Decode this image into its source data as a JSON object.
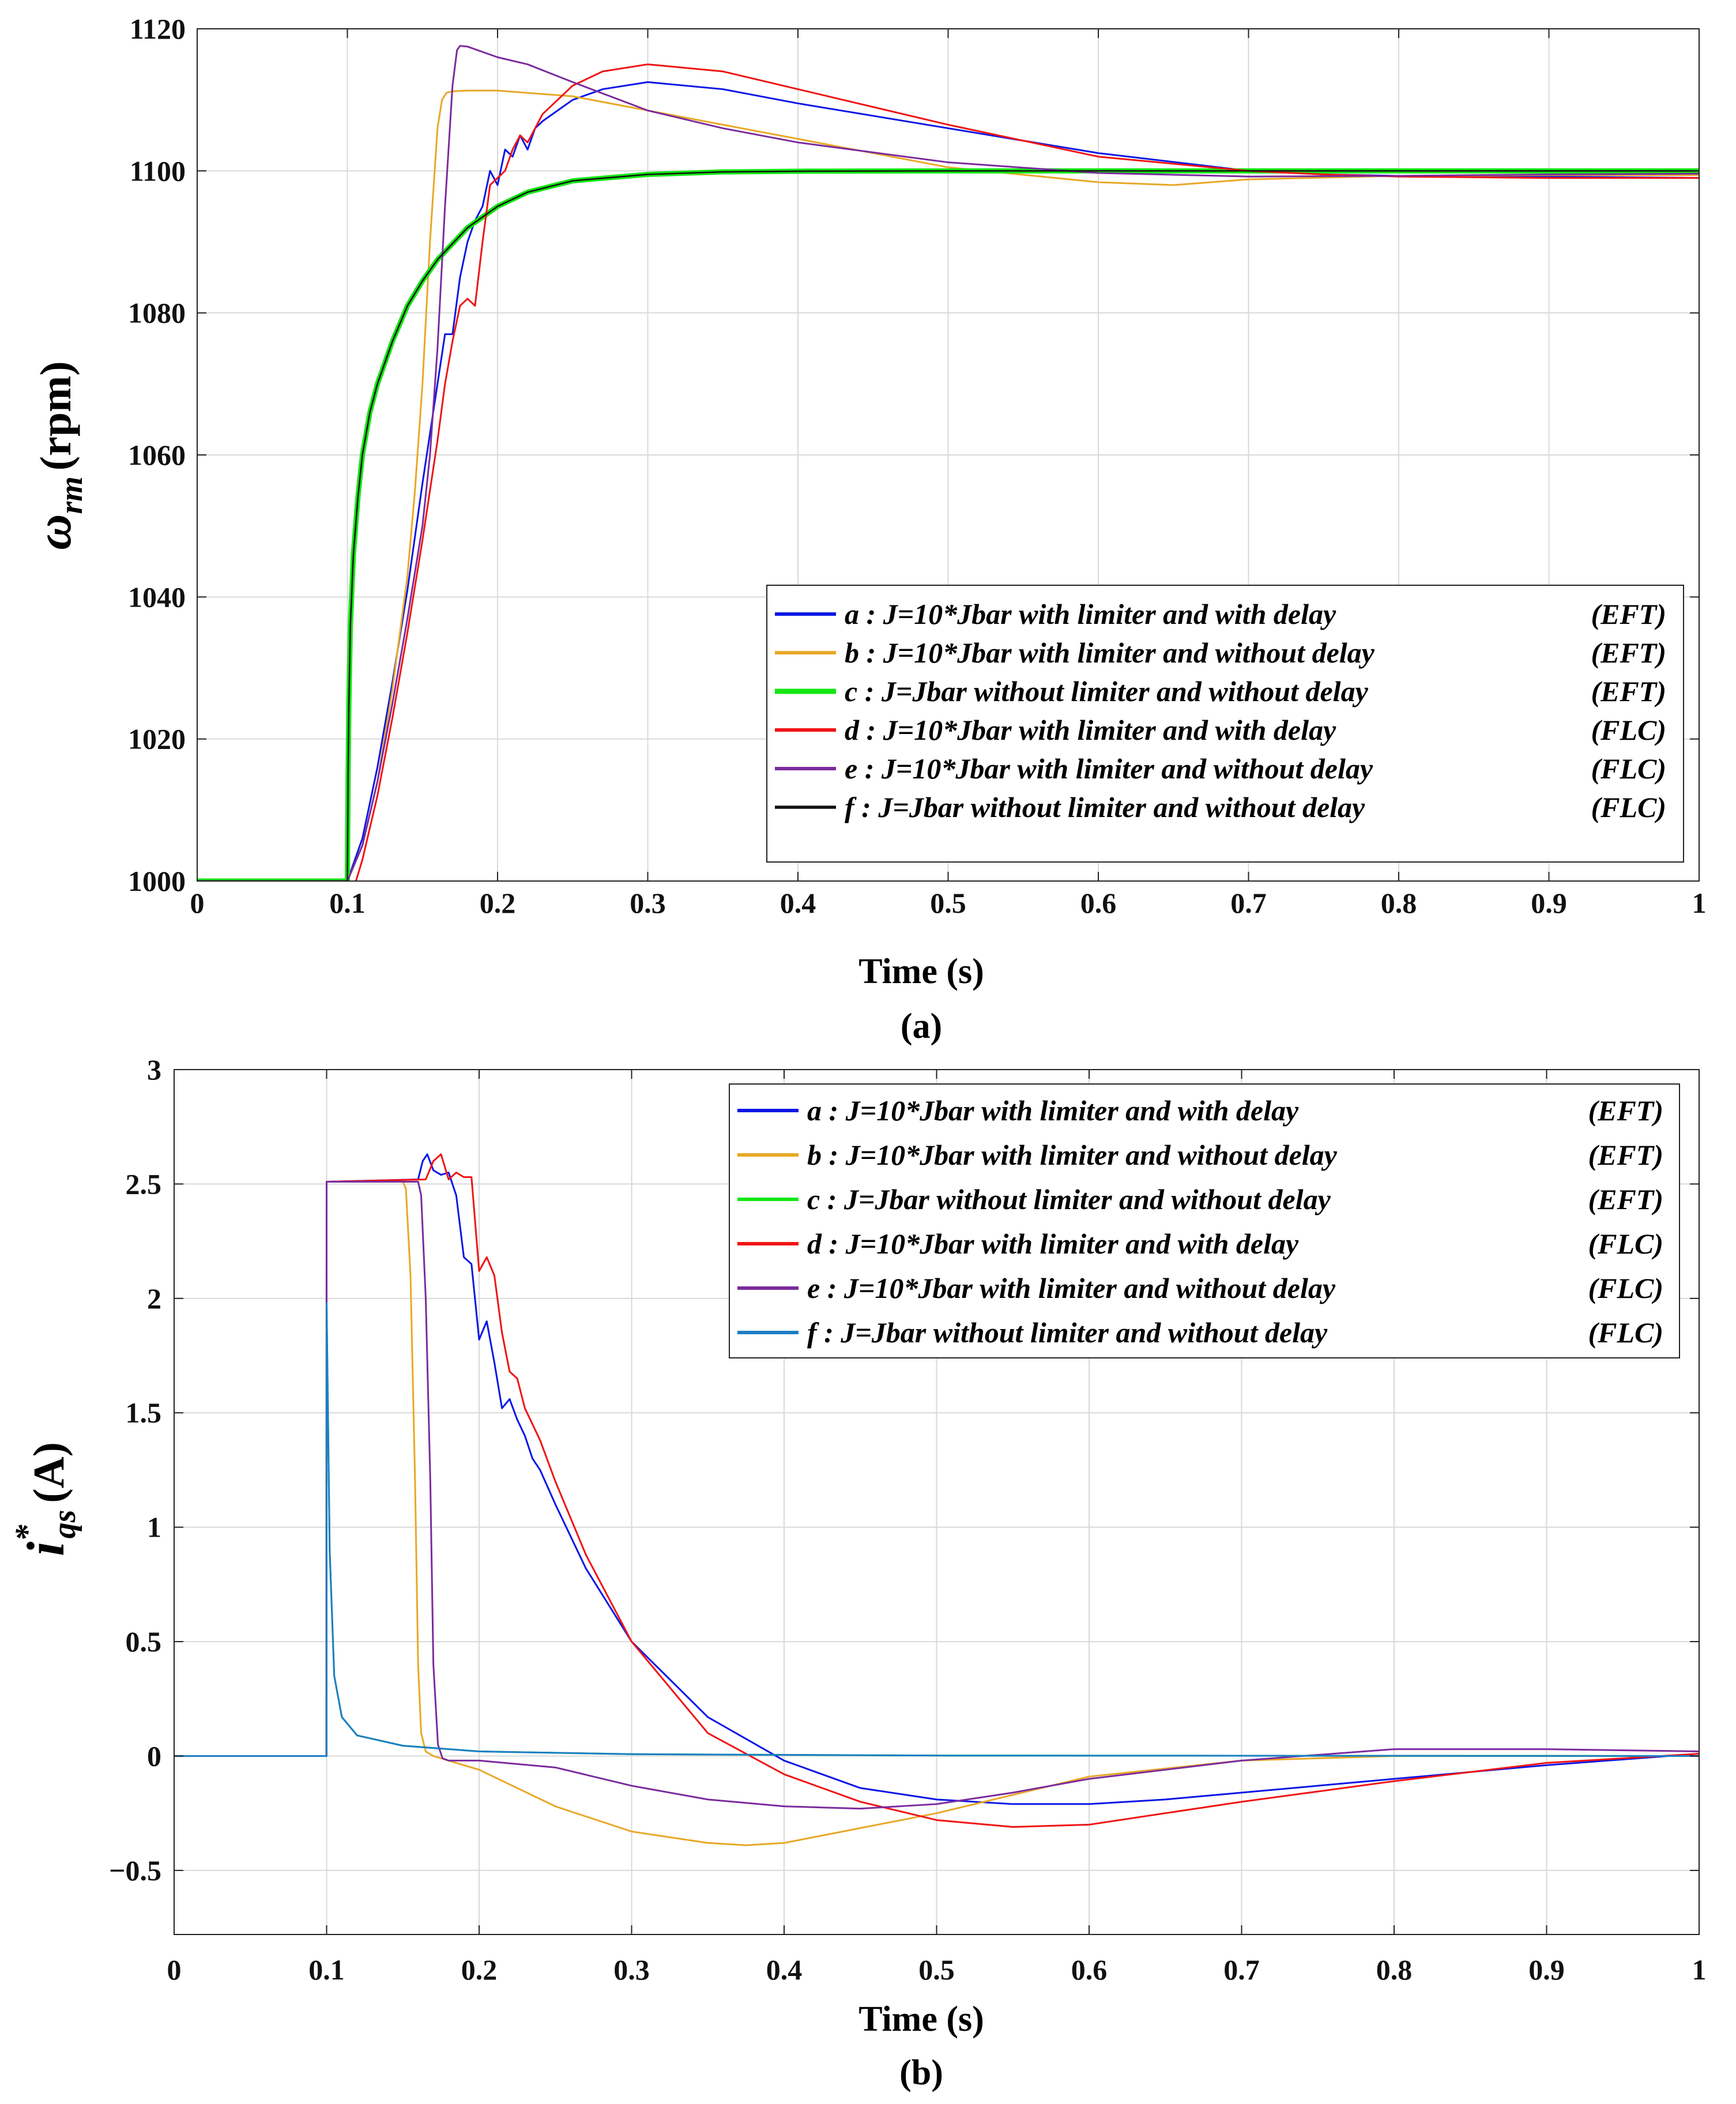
{
  "chart_data": [
    {
      "type": "line",
      "panel_label": "(a)",
      "ylabel": {
        "symbol": "ω",
        "subscript": "rm",
        "unit": "(rpm)"
      },
      "xlabel": "Time (s)",
      "xlim": [
        0,
        1
      ],
      "ylim": [
        1000,
        1120
      ],
      "xticks": [
        0,
        0.1,
        0.2,
        0.3,
        0.4,
        0.5,
        0.6,
        0.7,
        0.8,
        0.9,
        1
      ],
      "xtick_labels": [
        "0",
        "0.1",
        "0.2",
        "0.3",
        "0.4",
        "0.5",
        "0.6",
        "0.7",
        "0.8",
        "0.9",
        "1"
      ],
      "yticks": [
        1000,
        1020,
        1040,
        1060,
        1080,
        1100,
        1120
      ],
      "ytick_labels": [
        "1000",
        "1020",
        "1040",
        "1060",
        "1080",
        "1100",
        "1120"
      ],
      "grid": true,
      "legend_position": "bottom-right",
      "series": [
        {
          "key": "a",
          "name": "a : J=10*Jbar with limiter and with delay",
          "tag": "(EFT)",
          "color": "#0a16e6",
          "width": 3,
          "x": [
            0,
            0.1,
            0.11,
            0.12,
            0.13,
            0.14,
            0.15,
            0.16,
            0.165,
            0.17,
            0.175,
            0.18,
            0.185,
            0.19,
            0.195,
            0.2,
            0.205,
            0.21,
            0.215,
            0.22,
            0.225,
            0.23,
            0.24,
            0.25,
            0.27,
            0.3,
            0.35,
            0.4,
            0.5,
            0.6,
            0.7,
            0.75,
            0.8,
            0.9,
            1
          ],
          "y": [
            1000,
            1000,
            1006,
            1016,
            1028,
            1041,
            1056,
            1070,
            1077,
            1077,
            1085,
            1090,
            1093,
            1095,
            1100,
            1098,
            1103,
            1102,
            1105,
            1103,
            1106,
            1107,
            1108.5,
            1110,
            1111.5,
            1112.5,
            1111.5,
            1109.5,
            1106,
            1102.5,
            1100,
            1099.5,
            1099.3,
            1099.2,
            1099
          ]
        },
        {
          "key": "b",
          "name": "b : J=10*Jbar with limiter and without delay",
          "tag": "(EFT)",
          "color": "#e8a826",
          "width": 3,
          "x": [
            0,
            0.1,
            0.11,
            0.12,
            0.13,
            0.14,
            0.145,
            0.15,
            0.155,
            0.16,
            0.163,
            0.166,
            0.17,
            0.18,
            0.2,
            0.25,
            0.3,
            0.4,
            0.5,
            0.6,
            0.65,
            0.7,
            0.8,
            0.9,
            1
          ],
          "y": [
            1000,
            1000,
            1005,
            1014,
            1027,
            1043,
            1055,
            1070,
            1090,
            1106,
            1110,
            1111,
            1111.2,
            1111.3,
            1111.3,
            1110.5,
            1108.5,
            1104.5,
            1100.5,
            1098.4,
            1098,
            1098.8,
            1099.3,
            1099.4,
            1099.4
          ]
        },
        {
          "key": "c",
          "name": "c : J=Jbar  without  limiter and without delay",
          "tag": "(EFT)",
          "color": "#13e713",
          "width": 9,
          "x": [
            0,
            0.1,
            0.1005,
            0.101,
            0.102,
            0.104,
            0.107,
            0.11,
            0.115,
            0.12,
            0.13,
            0.14,
            0.15,
            0.16,
            0.18,
            0.2,
            0.22,
            0.25,
            0.3,
            0.35,
            0.4,
            0.5,
            0.6,
            0.7,
            1
          ],
          "y": [
            1000,
            1000,
            1015,
            1025,
            1036,
            1046,
            1054,
            1060,
            1066,
            1070,
            1076,
            1081,
            1084.5,
            1087.5,
            1092,
            1095,
            1097,
            1098.6,
            1099.5,
            1099.85,
            1099.95,
            1100,
            1100,
            1100,
            1100
          ]
        },
        {
          "key": "d",
          "name": "d : J=10*Jbar with limiter and with delay",
          "tag": "(FLC)",
          "color": "#f01414",
          "width": 3,
          "x": [
            0,
            0.1,
            0.105,
            0.11,
            0.12,
            0.13,
            0.14,
            0.15,
            0.16,
            0.165,
            0.17,
            0.175,
            0.18,
            0.185,
            0.19,
            0.195,
            0.2,
            0.205,
            0.21,
            0.215,
            0.22,
            0.225,
            0.23,
            0.24,
            0.25,
            0.27,
            0.3,
            0.35,
            0.4,
            0.5,
            0.6,
            0.7,
            0.75,
            0.8,
            0.9,
            1
          ],
          "y": [
            1000,
            1000,
            999.5,
            1003,
            1012,
            1023,
            1035,
            1048,
            1062,
            1070,
            1076,
            1081,
            1082,
            1081,
            1090,
            1098,
            1099,
            1100,
            1103,
            1105,
            1104,
            1106,
            1108,
            1110,
            1112,
            1114,
            1115,
            1114,
            1111.5,
            1106.5,
            1102,
            1100,
            1099.5,
            1099.2,
            1099,
            1099
          ]
        },
        {
          "key": "e",
          "name": "e : J=10*Jbar with limiter and without delay",
          "tag": "(FLC)",
          "color": "#7b2b9e",
          "width": 3,
          "x": [
            0,
            0.1,
            0.11,
            0.12,
            0.13,
            0.14,
            0.15,
            0.155,
            0.16,
            0.165,
            0.17,
            0.173,
            0.175,
            0.18,
            0.2,
            0.22,
            0.25,
            0.3,
            0.35,
            0.4,
            0.5,
            0.6,
            0.7,
            0.8,
            0.9,
            1
          ],
          "y": [
            1000,
            1000,
            1005,
            1014,
            1025,
            1037,
            1050,
            1060,
            1075,
            1095,
            1112,
            1117,
            1117.6,
            1117.5,
            1116,
            1115,
            1112.5,
            1108.5,
            1106,
            1104,
            1101.2,
            1099.7,
            1099.2,
            1099.3,
            1099.5,
            1099.6
          ]
        },
        {
          "key": "f",
          "name": "f : J=Jbar  without  limiter and without delay",
          "tag": "(FLC)",
          "color": "#111111",
          "width": 2.5,
          "x": [
            0,
            0.1,
            0.1005,
            0.101,
            0.102,
            0.104,
            0.107,
            0.11,
            0.115,
            0.12,
            0.13,
            0.14,
            0.15,
            0.16,
            0.18,
            0.2,
            0.22,
            0.25,
            0.3,
            0.35,
            0.4,
            0.5,
            0.6,
            0.7,
            1
          ],
          "y": [
            1000,
            1000,
            1015,
            1025,
            1036,
            1046,
            1054,
            1060,
            1066,
            1070,
            1076,
            1081,
            1084.5,
            1087.5,
            1092,
            1095,
            1097,
            1098.6,
            1099.5,
            1099.85,
            1099.95,
            1100,
            1100,
            1100,
            1100
          ]
        }
      ]
    },
    {
      "type": "line",
      "panel_label": "(b)",
      "ylabel": {
        "symbol": "i",
        "subscript": "qs",
        "superscript": "*",
        "unit": "(A)"
      },
      "xlabel": "Time (s)",
      "xlim": [
        0,
        1
      ],
      "ylim": [
        -0.78,
        3
      ],
      "xticks": [
        0,
        0.1,
        0.2,
        0.3,
        0.4,
        0.5,
        0.6,
        0.7,
        0.8,
        0.9,
        1
      ],
      "xtick_labels": [
        "0",
        "0.1",
        "0.2",
        "0.3",
        "0.4",
        "0.5",
        "0.6",
        "0.7",
        "0.8",
        "0.9",
        "1"
      ],
      "yticks": [
        -0.5,
        0,
        0.5,
        1,
        1.5,
        2,
        2.5,
        3
      ],
      "ytick_labels": [
        "−0.5",
        "0",
        "0.5",
        "1",
        "1.5",
        "2",
        "2.5",
        "3"
      ],
      "grid": true,
      "legend_position": "top-right",
      "series": [
        {
          "key": "a",
          "name": "a : J=10*Jbar with limiter and with delay",
          "tag": "(EFT)",
          "color": "#0a16e6",
          "width": 3,
          "x": [
            0,
            0.0999,
            0.1,
            0.16,
            0.163,
            0.166,
            0.17,
            0.175,
            0.18,
            0.185,
            0.19,
            0.195,
            0.2,
            0.205,
            0.21,
            0.215,
            0.22,
            0.225,
            0.23,
            0.235,
            0.24,
            0.25,
            0.27,
            0.3,
            0.35,
            0.4,
            0.45,
            0.5,
            0.55,
            0.6,
            0.65,
            0.7,
            0.8,
            0.9,
            1
          ],
          "y": [
            0,
            0,
            2.51,
            2.52,
            2.6,
            2.63,
            2.56,
            2.54,
            2.55,
            2.45,
            2.18,
            2.15,
            1.82,
            1.9,
            1.72,
            1.52,
            1.56,
            1.47,
            1.4,
            1.3,
            1.25,
            1.1,
            0.82,
            0.5,
            0.17,
            -0.02,
            -0.14,
            -0.19,
            -0.21,
            -0.21,
            -0.19,
            -0.16,
            -0.1,
            -0.04,
            0.01
          ]
        },
        {
          "key": "b",
          "name": "b : J=10*Jbar with limiter and without delay",
          "tag": "(EFT)",
          "color": "#e8a826",
          "width": 3,
          "x": [
            0,
            0.0999,
            0.1,
            0.15,
            0.152,
            0.155,
            0.158,
            0.16,
            0.162,
            0.165,
            0.17,
            0.18,
            0.2,
            0.25,
            0.3,
            0.35,
            0.375,
            0.4,
            0.5,
            0.6,
            0.7,
            0.8,
            1
          ],
          "y": [
            0,
            0,
            2.51,
            2.51,
            2.48,
            2.1,
            1.2,
            0.4,
            0.1,
            0.02,
            0,
            -0.02,
            -0.06,
            -0.22,
            -0.33,
            -0.38,
            -0.39,
            -0.38,
            -0.25,
            -0.09,
            -0.02,
            0,
            0
          ]
        },
        {
          "key": "c",
          "name": "c : J=Jbar  without  limiter and without delay",
          "tag": "(EFT)",
          "color": "#13e713",
          "width": 3,
          "x": [
            0,
            0.0999,
            0.1,
            0.102,
            0.105,
            0.11,
            0.12,
            0.15,
            0.2,
            0.3,
            0.5,
            1
          ],
          "y": [
            0,
            0,
            1.98,
            0.9,
            0.35,
            0.17,
            0.09,
            0.045,
            0.02,
            0.008,
            0.002,
            0
          ]
        },
        {
          "key": "d",
          "name": "d : J=10*Jbar with limiter and with delay",
          "tag": "(FLC)",
          "color": "#f01414",
          "width": 3,
          "x": [
            0,
            0.0999,
            0.1,
            0.165,
            0.17,
            0.175,
            0.18,
            0.185,
            0.19,
            0.195,
            0.2,
            0.205,
            0.21,
            0.215,
            0.22,
            0.225,
            0.23,
            0.24,
            0.25,
            0.27,
            0.3,
            0.35,
            0.4,
            0.45,
            0.5,
            0.55,
            0.6,
            0.7,
            0.8,
            0.9,
            1
          ],
          "y": [
            0,
            0,
            2.51,
            2.52,
            2.6,
            2.63,
            2.52,
            2.55,
            2.53,
            2.53,
            2.12,
            2.18,
            2.1,
            1.85,
            1.68,
            1.65,
            1.52,
            1.38,
            1.2,
            0.88,
            0.5,
            0.1,
            -0.08,
            -0.2,
            -0.28,
            -0.31,
            -0.3,
            -0.2,
            -0.11,
            -0.03,
            0.01
          ]
        },
        {
          "key": "e",
          "name": "e : J=10*Jbar with limiter and without delay",
          "tag": "(FLC)",
          "color": "#7b2b9e",
          "width": 3,
          "x": [
            0,
            0.0999,
            0.1,
            0.16,
            0.162,
            0.165,
            0.168,
            0.17,
            0.173,
            0.176,
            0.18,
            0.2,
            0.25,
            0.3,
            0.35,
            0.4,
            0.45,
            0.5,
            0.55,
            0.6,
            0.7,
            0.8,
            0.9,
            1
          ],
          "y": [
            0,
            0,
            2.51,
            2.51,
            2.45,
            2.0,
            1.2,
            0.4,
            0.05,
            -0.01,
            -0.02,
            -0.02,
            -0.05,
            -0.13,
            -0.19,
            -0.22,
            -0.23,
            -0.21,
            -0.16,
            -0.1,
            -0.02,
            0.03,
            0.03,
            0.02
          ]
        },
        {
          "key": "f",
          "name": "f : J=Jbar  without  limiter and without delay",
          "tag": "(FLC)",
          "color": "#1c7ec4",
          "width": 3,
          "x": [
            0,
            0.0999,
            0.1,
            0.102,
            0.105,
            0.11,
            0.12,
            0.15,
            0.2,
            0.3,
            0.5,
            1
          ],
          "y": [
            0,
            0,
            1.98,
            0.9,
            0.35,
            0.17,
            0.09,
            0.045,
            0.02,
            0.008,
            0.002,
            0
          ]
        }
      ]
    }
  ]
}
